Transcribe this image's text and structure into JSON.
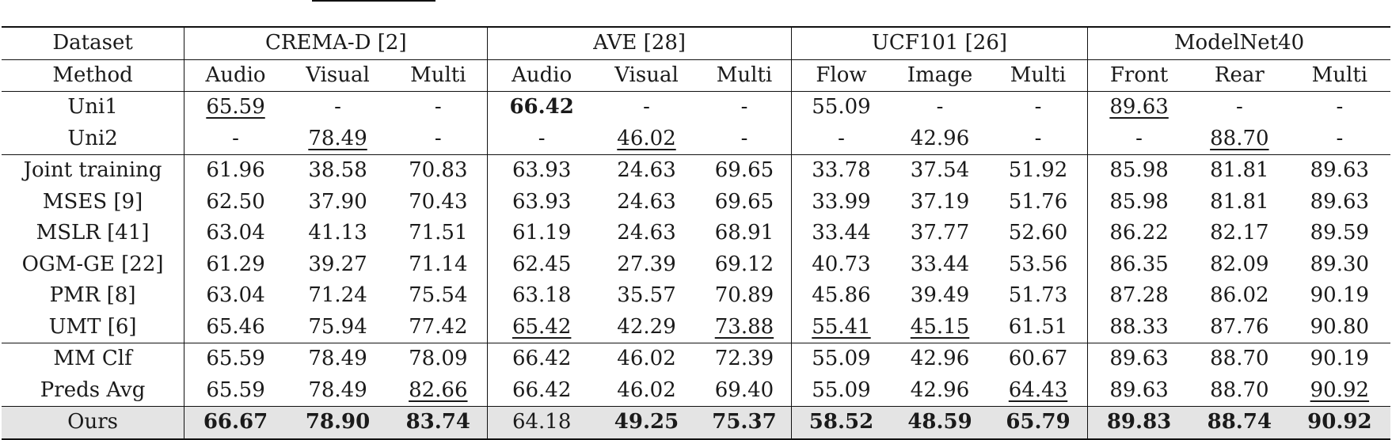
{
  "header": {
    "dataset_label": "Dataset",
    "method_label": "Method",
    "datasets": [
      {
        "name": "CREMA-D [2]",
        "cols": [
          "Audio",
          "Visual",
          "Multi"
        ]
      },
      {
        "name": "AVE [28]",
        "cols": [
          "Audio",
          "Visual",
          "Multi"
        ]
      },
      {
        "name": "UCF101 [26]",
        "cols": [
          "Flow",
          "Image",
          "Multi"
        ]
      },
      {
        "name": "ModelNet40",
        "cols": [
          "Front",
          "Rear",
          "Multi"
        ]
      }
    ]
  },
  "rows": [
    {
      "method": "Uni1",
      "values": [
        "65.59",
        "-",
        "-",
        "66.42",
        "-",
        "-",
        "55.09",
        "-",
        "-",
        "89.63",
        "-",
        "-"
      ],
      "underline": [
        0,
        9
      ],
      "bold": [
        3
      ],
      "group": 1
    },
    {
      "method": "Uni2",
      "values": [
        "-",
        "78.49",
        "-",
        "-",
        "46.02",
        "-",
        "-",
        "42.96",
        "-",
        "-",
        "88.70",
        "-"
      ],
      "underline": [
        1,
        4,
        10
      ],
      "bold": [],
      "group": 1
    },
    {
      "method": "Joint training",
      "values": [
        "61.96",
        "38.58",
        "70.83",
        "63.93",
        "24.63",
        "69.65",
        "33.78",
        "37.54",
        "51.92",
        "85.98",
        "81.81",
        "89.63"
      ],
      "underline": [],
      "bold": [],
      "group": 2
    },
    {
      "method": "MSES [9]",
      "values": [
        "62.50",
        "37.90",
        "70.43",
        "63.93",
        "24.63",
        "69.65",
        "33.99",
        "37.19",
        "51.76",
        "85.98",
        "81.81",
        "89.63"
      ],
      "underline": [],
      "bold": [],
      "group": 2
    },
    {
      "method": "MSLR [41]",
      "values": [
        "63.04",
        "41.13",
        "71.51",
        "61.19",
        "24.63",
        "68.91",
        "33.44",
        "37.77",
        "52.60",
        "86.22",
        "82.17",
        "89.59"
      ],
      "underline": [],
      "bold": [],
      "group": 2
    },
    {
      "method": "OGM-GE [22]",
      "values": [
        "61.29",
        "39.27",
        "71.14",
        "62.45",
        "27.39",
        "69.12",
        "40.73",
        "33.44",
        "53.56",
        "86.35",
        "82.09",
        "89.30"
      ],
      "underline": [],
      "bold": [],
      "group": 2
    },
    {
      "method": "PMR [8]",
      "values": [
        "63.04",
        "71.24",
        "75.54",
        "63.18",
        "35.57",
        "70.89",
        "45.86",
        "39.49",
        "51.73",
        "87.28",
        "86.02",
        "90.19"
      ],
      "underline": [],
      "bold": [],
      "group": 2
    },
    {
      "method": "UMT [6]",
      "values": [
        "65.46",
        "75.94",
        "77.42",
        "65.42",
        "42.29",
        "73.88",
        "55.41",
        "45.15",
        "61.51",
        "88.33",
        "87.76",
        "90.80"
      ],
      "underline": [
        3,
        5,
        6,
        7
      ],
      "bold": [],
      "group": 2
    },
    {
      "method": "MM Clf",
      "values": [
        "65.59",
        "78.49",
        "78.09",
        "66.42",
        "46.02",
        "72.39",
        "55.09",
        "42.96",
        "60.67",
        "89.63",
        "88.70",
        "90.19"
      ],
      "underline": [],
      "bold": [],
      "group": 3
    },
    {
      "method": "Preds Avg",
      "values": [
        "65.59",
        "78.49",
        "82.66",
        "66.42",
        "46.02",
        "69.40",
        "55.09",
        "42.96",
        "64.43",
        "89.63",
        "88.70",
        "90.92"
      ],
      "underline": [
        2,
        8,
        11
      ],
      "bold": [],
      "group": 3
    },
    {
      "method": "Ours",
      "values": [
        "66.67",
        "78.90",
        "83.74",
        "64.18",
        "49.25",
        "75.37",
        "58.52",
        "48.59",
        "65.79",
        "89.83",
        "88.74",
        "90.92"
      ],
      "underline": [],
      "bold": [
        0,
        1,
        2,
        4,
        5,
        6,
        7,
        8,
        9,
        10,
        11
      ],
      "group": 4
    }
  ]
}
